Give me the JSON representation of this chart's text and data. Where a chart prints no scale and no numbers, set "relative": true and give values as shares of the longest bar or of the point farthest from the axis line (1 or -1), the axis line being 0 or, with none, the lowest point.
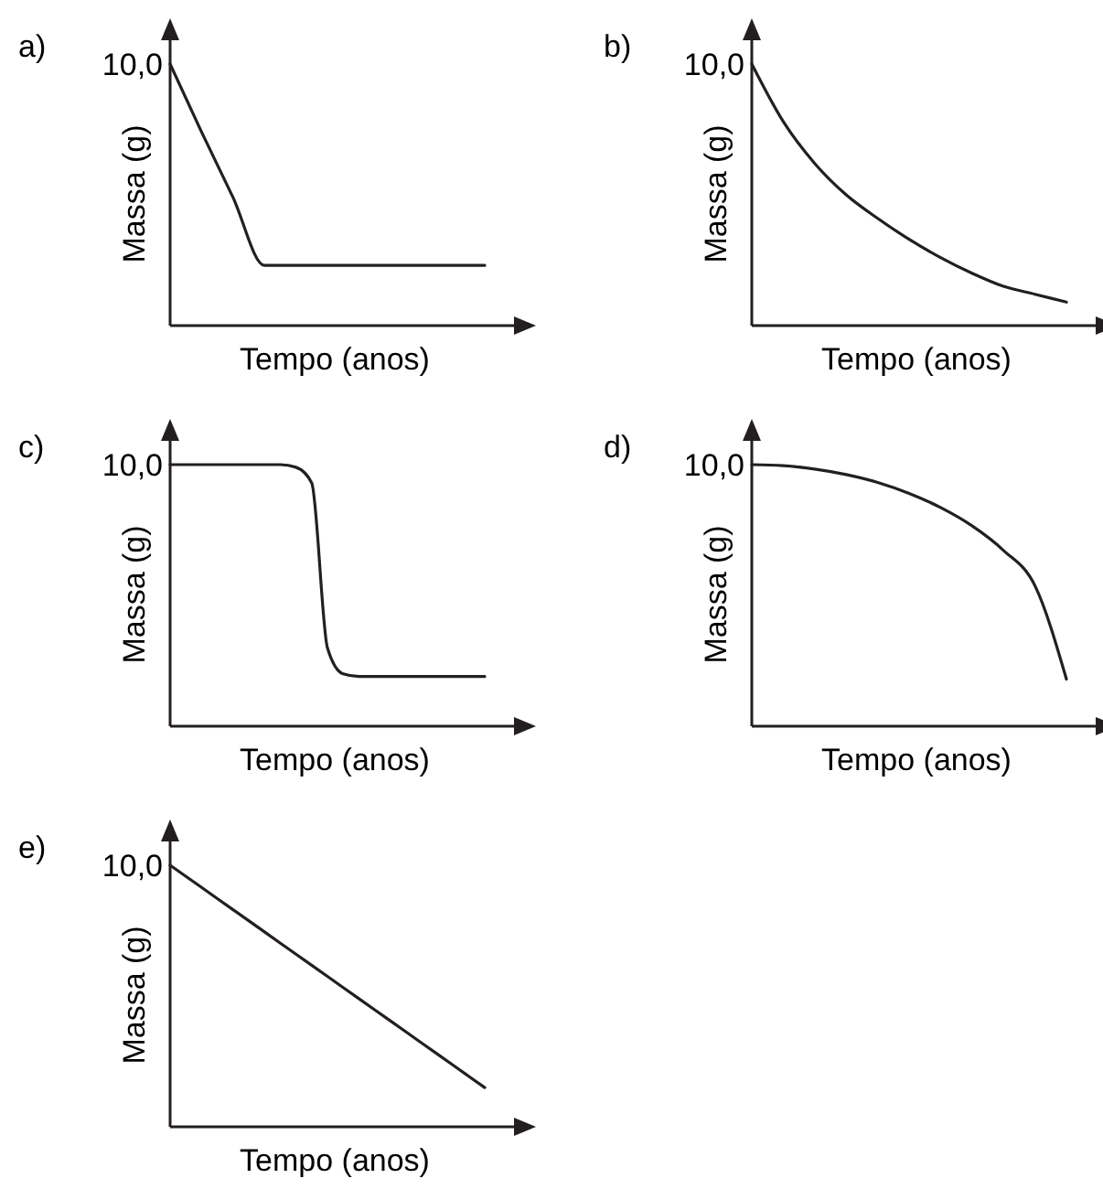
{
  "chart_data": [
    {
      "type": "line",
      "title": "a)",
      "xlabel": "Tempo (anos)",
      "ylabel": "Massa (g)",
      "relative": true,
      "annotations": [
        "10,0"
      ],
      "color": "#231f20",
      "categories": [
        null,
        null,
        null,
        null,
        null,
        null,
        null,
        null,
        null,
        null,
        null
      ],
      "values": [
        1,
        0.74,
        0.49,
        0.23,
        0.23,
        0.23,
        0.23,
        0.23,
        0.23,
        0.23,
        0.23
      ]
    },
    {
      "type": "line",
      "title": "b)",
      "xlabel": "Tempo (anos)",
      "ylabel": "Massa (g)",
      "relative": true,
      "annotations": [
        "10,0"
      ],
      "color": "#231f20",
      "categories": [
        null,
        null,
        null,
        null,
        null,
        null,
        null,
        null,
        null,
        null,
        null
      ],
      "values": [
        1,
        0.78,
        0.62,
        0.5,
        0.41,
        0.33,
        0.26,
        0.2,
        0.15,
        0.12,
        0.09
      ]
    },
    {
      "type": "line",
      "title": "c)",
      "xlabel": "Tempo (anos)",
      "ylabel": "Massa (g)",
      "relative": true,
      "annotations": [
        "10,0"
      ],
      "color": "#231f20",
      "categories": [
        null,
        null,
        null,
        null,
        null,
        null,
        null,
        null,
        null,
        null,
        null,
        null,
        null,
        null,
        null,
        null,
        null,
        null,
        null,
        null,
        null
      ],
      "values": [
        1,
        1,
        1,
        1,
        1,
        1,
        1,
        1,
        0.99,
        0.93,
        0.3,
        0.2,
        0.19,
        0.19,
        0.19,
        0.19,
        0.19,
        0.19,
        0.19,
        0.19,
        0.19
      ]
    },
    {
      "type": "line",
      "title": "d)",
      "xlabel": "Tempo (anos)",
      "ylabel": "Massa (g)",
      "relative": true,
      "annotations": [
        "10,0"
      ],
      "color": "#231f20",
      "categories": [
        null,
        null,
        null,
        null,
        null,
        null,
        null,
        null,
        null,
        null,
        null
      ],
      "values": [
        1,
        0.996,
        0.983,
        0.962,
        0.932,
        0.89,
        0.836,
        0.766,
        0.672,
        0.537,
        0.18
      ]
    },
    {
      "type": "line",
      "title": "e)",
      "xlabel": "Tempo (anos)",
      "ylabel": "Massa (g)",
      "relative": true,
      "annotations": [
        "10,0"
      ],
      "color": "#231f20",
      "categories": [
        null,
        null,
        null,
        null,
        null,
        null,
        null,
        null,
        null,
        null,
        null
      ],
      "values": [
        1,
        0.915,
        0.83,
        0.745,
        0.66,
        0.575,
        0.49,
        0.405,
        0.32,
        0.235,
        0.15
      ]
    }
  ]
}
